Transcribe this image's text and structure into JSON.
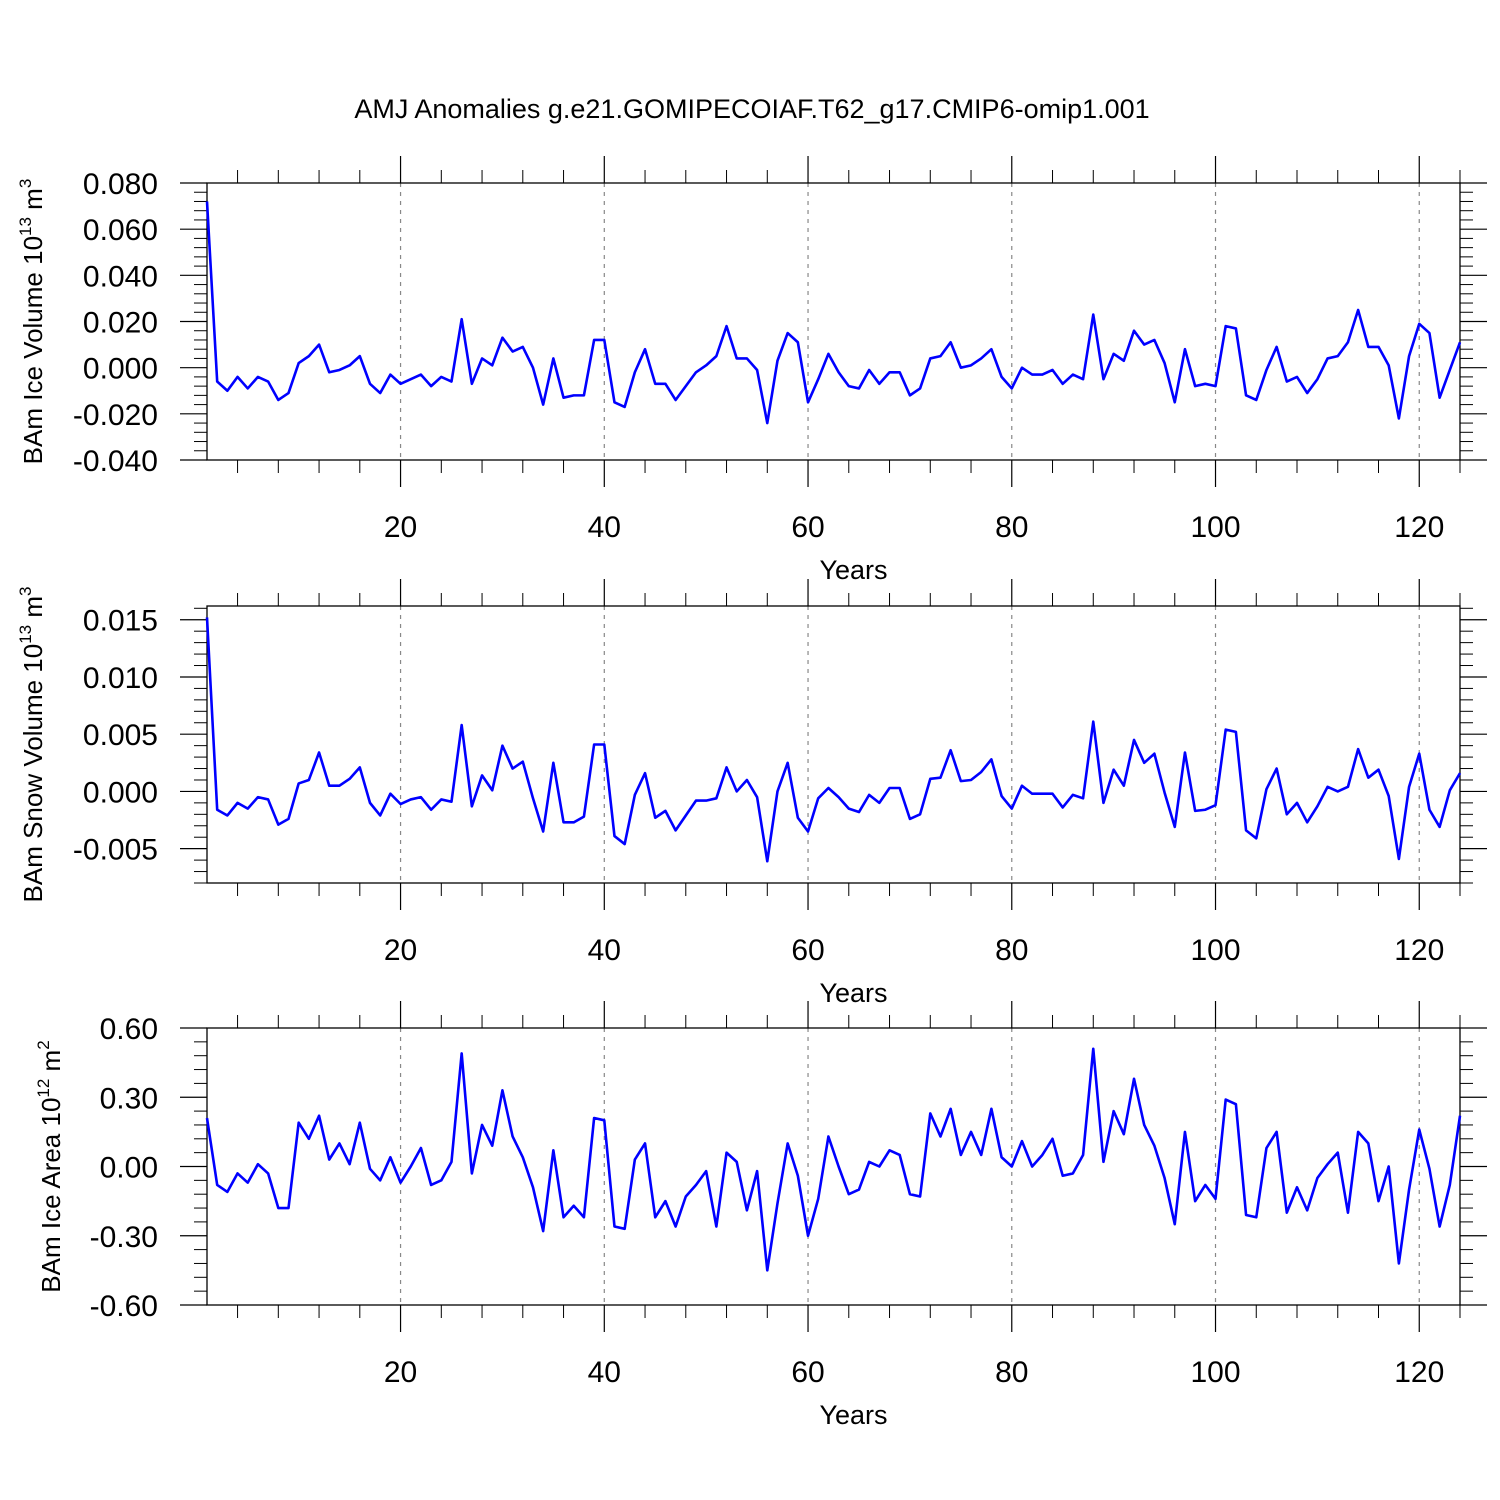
{
  "title": "AMJ Anomalies g.e21.GOMIPECOIAF.T62_g17.CMIP6-omip1.001",
  "colors": {
    "line": "#0000ff",
    "axis": "#000000",
    "grid": "#888888"
  },
  "chart_data": [
    {
      "type": "line",
      "name": "ice-volume",
      "ylabel_main": "BAm Ice Volume 10",
      "ylabel_sup": "13",
      "ylabel_unit": "m",
      "ylabel_unit_sup": "3",
      "xlabel": "Years",
      "xlim": [
        1,
        124
      ],
      "ylim": [
        -0.04,
        0.08
      ],
      "xticks": [
        20,
        40,
        60,
        80,
        100,
        120
      ],
      "xtick_labels": [
        "20",
        "40",
        "60",
        "80",
        "100",
        "120"
      ],
      "yticks": [
        -0.04,
        -0.02,
        0,
        0.02,
        0.04,
        0.06,
        0.08
      ],
      "ytick_labels": [
        "-0.040",
        "-0.020",
        "0.000",
        "0.020",
        "0.040",
        "0.060",
        "0.080"
      ],
      "grid_x": [
        20,
        40,
        60,
        80,
        100,
        120
      ],
      "x_start": 1,
      "values": [
        0.072,
        -0.006,
        -0.01,
        -0.004,
        -0.009,
        -0.004,
        -0.006,
        -0.014,
        -0.011,
        0.002,
        0.005,
        0.01,
        -0.002,
        -0.001,
        0.001,
        0.005,
        -0.007,
        -0.011,
        -0.003,
        -0.007,
        -0.005,
        -0.003,
        -0.008,
        -0.004,
        -0.006,
        0.021,
        -0.007,
        0.004,
        0.001,
        0.013,
        0.007,
        0.009,
        0.0,
        -0.016,
        0.004,
        -0.013,
        -0.012,
        -0.012,
        0.012,
        0.012,
        -0.015,
        -0.017,
        -0.002,
        0.008,
        -0.007,
        -0.007,
        -0.014,
        -0.008,
        -0.002,
        0.001,
        0.005,
        0.018,
        0.004,
        0.004,
        -0.001,
        -0.024,
        0.003,
        0.015,
        0.011,
        -0.015,
        -0.005,
        0.006,
        -0.002,
        -0.008,
        -0.009,
        -0.001,
        -0.007,
        -0.002,
        -0.002,
        -0.012,
        -0.009,
        0.004,
        0.005,
        0.011,
        0.0,
        0.001,
        0.004,
        0.008,
        -0.004,
        -0.009,
        0.0,
        -0.003,
        -0.003,
        -0.001,
        -0.007,
        -0.003,
        -0.005,
        0.023,
        -0.005,
        0.006,
        0.003,
        0.016,
        0.01,
        0.012,
        0.002,
        -0.015,
        0.008,
        -0.008,
        -0.007,
        -0.008,
        0.018,
        0.017,
        -0.012,
        -0.014,
        -0.001,
        0.009,
        -0.006,
        -0.004,
        -0.011,
        -0.005,
        0.004,
        0.005,
        0.011,
        0.025,
        0.009,
        0.009,
        0.001,
        -0.022,
        0.005,
        0.019,
        0.015,
        -0.013,
        -0.001,
        0.011
      ]
    },
    {
      "type": "line",
      "name": "snow-volume",
      "ylabel_main": "BAm Snow Volume 10",
      "ylabel_sup": "13",
      "ylabel_unit": "m",
      "ylabel_unit_sup": "3",
      "xlabel": "Years",
      "xlim": [
        1,
        124
      ],
      "ylim": [
        -0.008,
        0.0162
      ],
      "xticks": [
        20,
        40,
        60,
        80,
        100,
        120
      ],
      "xtick_labels": [
        "20",
        "40",
        "60",
        "80",
        "100",
        "120"
      ],
      "yticks": [
        -0.005,
        0,
        0.005,
        0.01,
        0.015
      ],
      "ytick_labels": [
        "-0.005",
        "0.000",
        "0.005",
        "0.010",
        "0.015"
      ],
      "grid_x": [
        20,
        40,
        60,
        80,
        100,
        120
      ],
      "x_start": 1,
      "values": [
        0.0152,
        -0.0016,
        -0.0021,
        -0.001,
        -0.0015,
        -0.0005,
        -0.0007,
        -0.0029,
        -0.0024,
        0.0007,
        0.001,
        0.0034,
        0.0005,
        0.0005,
        0.0011,
        0.0021,
        -0.001,
        -0.0021,
        -0.0002,
        -0.0011,
        -0.0007,
        -0.0005,
        -0.0016,
        -0.0007,
        -0.0009,
        0.0058,
        -0.0013,
        0.0014,
        0.0001,
        0.004,
        0.002,
        0.0026,
        -0.0006,
        -0.0035,
        0.0025,
        -0.0027,
        -0.0027,
        -0.0022,
        0.0041,
        0.0041,
        -0.0039,
        -0.0046,
        -0.0003,
        0.0016,
        -0.0023,
        -0.0017,
        -0.0034,
        -0.0021,
        -0.0008,
        -0.0008,
        -0.0006,
        0.0021,
        0.0,
        0.001,
        -0.0005,
        -0.0061,
        0.0,
        0.0025,
        -0.0023,
        -0.0035,
        -0.0006,
        0.0003,
        -0.0005,
        -0.0015,
        -0.0018,
        -0.0003,
        -0.001,
        0.0003,
        0.0003,
        -0.0024,
        -0.002,
        0.0011,
        0.0012,
        0.0036,
        0.0009,
        0.001,
        0.0017,
        0.0028,
        -0.0004,
        -0.0015,
        0.0005,
        -0.0002,
        -0.0002,
        -0.0002,
        -0.0014,
        -0.0003,
        -0.0006,
        0.0061,
        -0.001,
        0.0019,
        0.0005,
        0.0045,
        0.0025,
        0.0033,
        -0.0001,
        -0.0031,
        0.0034,
        -0.0017,
        -0.0016,
        -0.0012,
        0.0054,
        0.0052,
        -0.0034,
        -0.0041,
        0.0002,
        0.002,
        -0.002,
        -0.001,
        -0.0027,
        -0.0013,
        0.0004,
        0.0,
        0.0004,
        0.0037,
        0.0012,
        0.0019,
        -0.0004,
        -0.0059,
        0.0004,
        0.0033,
        -0.0016,
        -0.0031,
        0.0001,
        0.0016
      ]
    },
    {
      "type": "line",
      "name": "ice-area",
      "ylabel_main": "BAm Ice Area 10",
      "ylabel_sup": "12",
      "ylabel_unit": "m",
      "ylabel_unit_sup": "2",
      "xlabel": "Years",
      "xlim": [
        1,
        124
      ],
      "ylim": [
        -0.6,
        0.6
      ],
      "xticks": [
        20,
        40,
        60,
        80,
        100,
        120
      ],
      "xtick_labels": [
        "20",
        "40",
        "60",
        "80",
        "100",
        "120"
      ],
      "yticks": [
        -0.6,
        -0.3,
        0,
        0.3,
        0.6
      ],
      "ytick_labels": [
        "-0.60",
        "-0.30",
        "0.00",
        "0.30",
        "0.60"
      ],
      "grid_x": [
        20,
        40,
        60,
        80,
        100,
        120
      ],
      "x_start": 1,
      "values": [
        0.21,
        -0.08,
        -0.11,
        -0.03,
        -0.07,
        0.01,
        -0.03,
        -0.18,
        -0.18,
        0.19,
        0.12,
        0.22,
        0.03,
        0.1,
        0.01,
        0.19,
        -0.01,
        -0.06,
        0.04,
        -0.07,
        0.0,
        0.08,
        -0.08,
        -0.06,
        0.02,
        0.49,
        -0.03,
        0.18,
        0.09,
        0.33,
        0.13,
        0.04,
        -0.09,
        -0.28,
        0.07,
        -0.22,
        -0.17,
        -0.22,
        0.21,
        0.2,
        -0.26,
        -0.27,
        0.03,
        0.1,
        -0.22,
        -0.15,
        -0.26,
        -0.13,
        -0.08,
        -0.02,
        -0.26,
        0.06,
        0.02,
        -0.19,
        -0.02,
        -0.45,
        -0.16,
        0.1,
        -0.04,
        -0.3,
        -0.14,
        0.13,
        0.0,
        -0.12,
        -0.1,
        0.02,
        0.0,
        0.07,
        0.05,
        -0.12,
        -0.13,
        0.23,
        0.13,
        0.25,
        0.05,
        0.15,
        0.05,
        0.25,
        0.04,
        0.0,
        0.11,
        0.0,
        0.05,
        0.12,
        -0.04,
        -0.03,
        0.05,
        0.51,
        0.02,
        0.24,
        0.14,
        0.38,
        0.18,
        0.09,
        -0.05,
        -0.25,
        0.15,
        -0.15,
        -0.08,
        -0.14,
        0.29,
        0.27,
        -0.21,
        -0.22,
        0.08,
        0.15,
        -0.2,
        -0.09,
        -0.19,
        -0.05,
        0.01,
        0.06,
        -0.2,
        0.15,
        0.1,
        -0.15,
        0.0,
        -0.42,
        -0.1,
        0.16,
        -0.01,
        -0.26,
        -0.08,
        0.22
      ]
    }
  ]
}
